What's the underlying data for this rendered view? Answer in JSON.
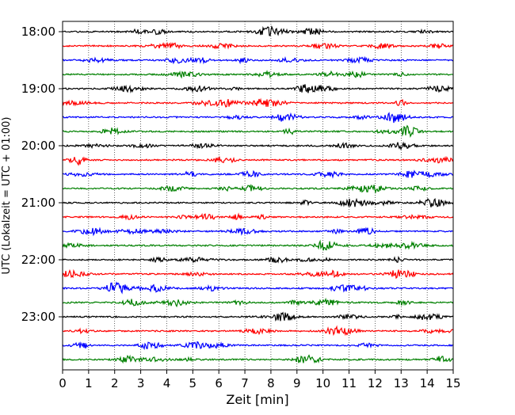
{
  "chart_data": {
    "type": "line",
    "xlabel": "Zeit  [min]",
    "ylabel": "UTC (Lokalzeit = UTC + 01:00)",
    "xlim": [
      0,
      15
    ],
    "x_ticks": [
      "0",
      "1",
      "2",
      "3",
      "4",
      "5",
      "6",
      "7",
      "8",
      "9",
      "10",
      "11",
      "12",
      "13",
      "14",
      "15"
    ],
    "y_ticks": [
      "18:00",
      "19:00",
      "20:00",
      "21:00",
      "22:00",
      "23:00"
    ],
    "y_tick_rows": [
      0,
      4,
      8,
      12,
      16,
      20
    ],
    "grid_x": true,
    "row_start": "18:00",
    "row_interval_min": 15,
    "row_count": 24,
    "row_colors": [
      "#000000",
      "#ff0000",
      "#0000ff",
      "#008000"
    ]
  }
}
